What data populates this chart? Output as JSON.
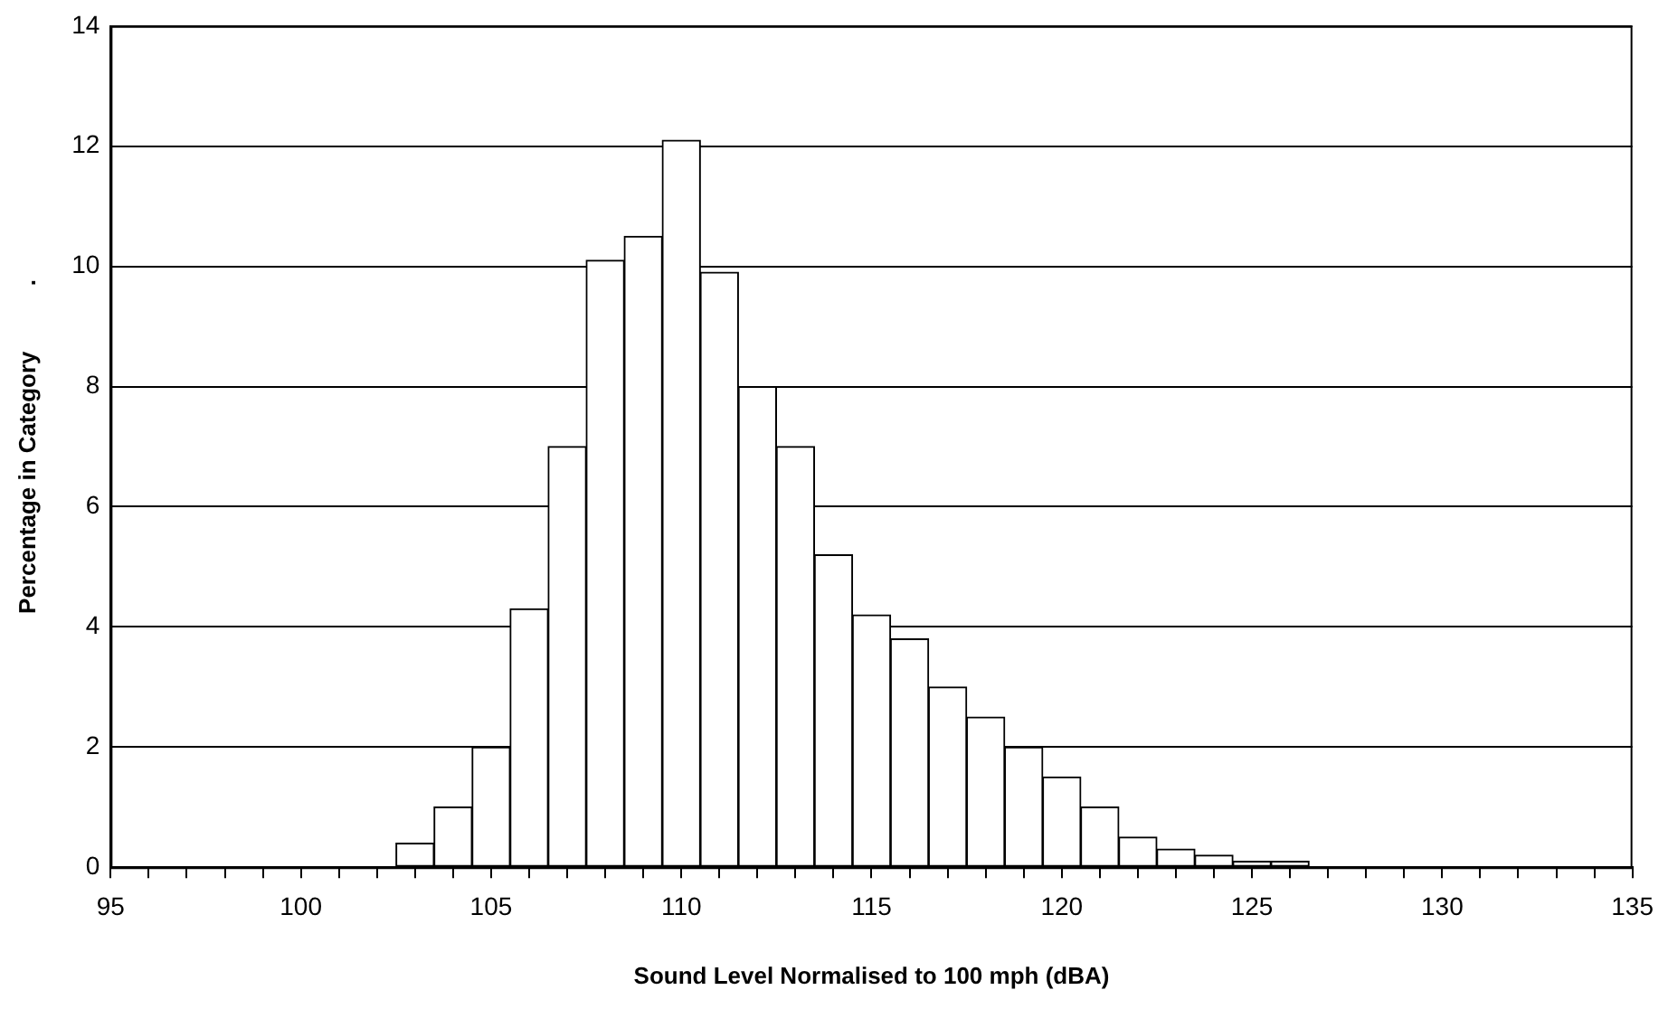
{
  "chart_data": {
    "type": "histogram",
    "xlabel": "Sound Level Normalised to 100 mph (dBA)",
    "ylabel": "Percentage in Category          .",
    "bins": [
      102.5,
      103.5,
      104.5,
      105.5,
      106.5,
      107.5,
      108.5,
      109.5,
      110.5,
      111.5,
      112.5,
      113.5,
      114.5,
      115.5,
      116.5,
      117.5,
      118.5,
      119.5,
      120.5,
      121.5,
      122.5,
      123.5,
      124.5,
      125.5,
      126.5
    ],
    "values": [
      0.4,
      1,
      2,
      4.3,
      7,
      10.1,
      10.5,
      12.1,
      9.9,
      8,
      7,
      5.2,
      4.2,
      3.8,
      3,
      2.5,
      2,
      1.5,
      1,
      0.5,
      0.3,
      0.2,
      0.1,
      0.1
    ],
    "color": "#ffffff",
    "xlim": [
      95,
      135
    ],
    "xticks": [
      95,
      {
        "value": 96,
        "label": null
      },
      {
        "value": 97,
        "label": null
      },
      {
        "value": 98,
        "label": null
      },
      {
        "value": 99,
        "label": null
      },
      100,
      {
        "value": 101,
        "label": null
      },
      {
        "value": 102,
        "label": null
      },
      {
        "value": 103,
        "label": null
      },
      {
        "value": 104,
        "label": null
      },
      105,
      {
        "value": 106,
        "label": null
      },
      {
        "value": 107,
        "label": null
      },
      {
        "value": 108,
        "label": null
      },
      {
        "value": 109,
        "label": null
      },
      110,
      {
        "value": 111,
        "label": null
      },
      {
        "value": 112,
        "label": null
      },
      {
        "value": 113,
        "label": null
      },
      {
        "value": 114,
        "label": null
      },
      115,
      {
        "value": 116,
        "label": null
      },
      {
        "value": 117,
        "label": null
      },
      {
        "value": 118,
        "label": null
      },
      {
        "value": 119,
        "label": null
      },
      120,
      {
        "value": 121,
        "label": null
      },
      {
        "value": 122,
        "label": null
      },
      {
        "value": 123,
        "label": null
      },
      {
        "value": 124,
        "label": null
      },
      125,
      {
        "value": 126,
        "label": null
      },
      {
        "value": 127,
        "label": null
      },
      {
        "value": 128,
        "label": null
      },
      {
        "value": 129,
        "label": null
      },
      130,
      {
        "value": 131,
        "label": null
      },
      {
        "value": 132,
        "label": null
      },
      {
        "value": 133,
        "label": null
      },
      {
        "value": 134,
        "label": null
      },
      135
    ],
    "ylim": [
      0,
      14
    ],
    "yticks": [
      0,
      2,
      4,
      6,
      8,
      10,
      12,
      14
    ],
    "grid": "y",
    "legend": false
  }
}
